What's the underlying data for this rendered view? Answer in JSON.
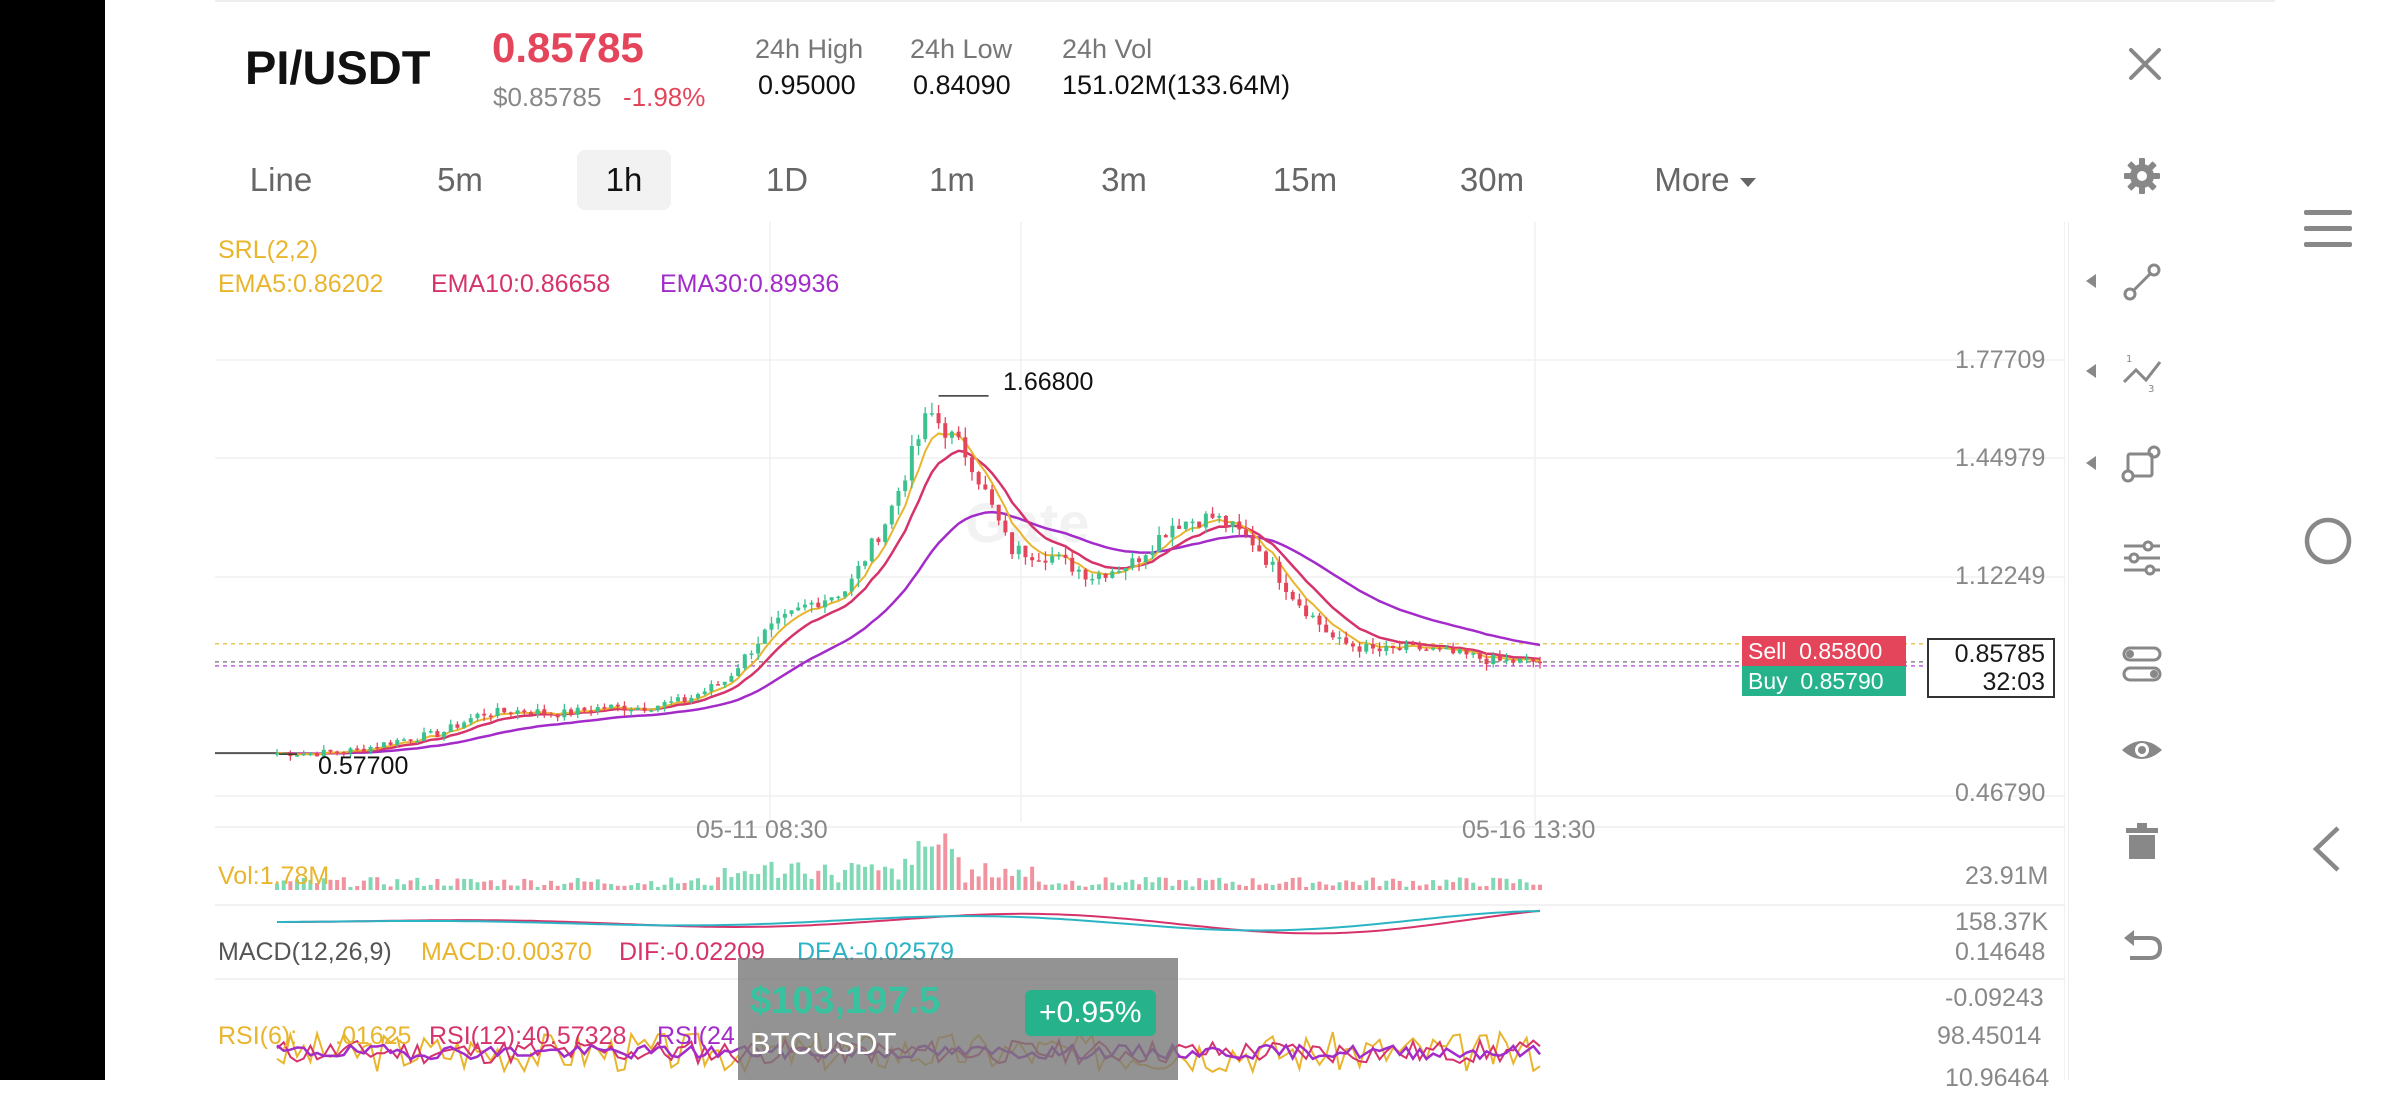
{
  "header": {
    "pair": "PI/USDT",
    "price": "0.85785",
    "usd_price": "$0.85785",
    "change": "-1.98%",
    "high_label": "24h High",
    "high_value": "0.95000",
    "low_label": "24h Low",
    "low_value": "0.84090",
    "vol_label": "24h Vol",
    "vol_value": "151.02M(133.64M)"
  },
  "tabs": [
    {
      "label": "Line"
    },
    {
      "label": "5m"
    },
    {
      "label": "1h"
    },
    {
      "label": "1D"
    },
    {
      "label": "1m"
    },
    {
      "label": "3m"
    },
    {
      "label": "15m"
    },
    {
      "label": "30m"
    },
    {
      "label": "More"
    }
  ],
  "active_tab": "1h",
  "indicators": {
    "srl": "SRL(2,2)",
    "ema5": "EMA5:0.86202",
    "ema10": "EMA10:0.86658",
    "ema30": "EMA30:0.89936",
    "vol": "Vol:1.78M",
    "macd_name": "MACD(12,26,9)",
    "macd": "MACD:0.00370",
    "dif": "DIF:-0.02209",
    "dea": "DEA:-0.02579",
    "rsi6": "RSI(6):",
    "rsi6_val": ".01625",
    "rsi12": "RSI(12):40.57328",
    "rsi24": "RSI(24"
  },
  "chart": {
    "y_labels": [
      "1.77709",
      "1.44979",
      "1.12249",
      "0.46790"
    ],
    "x_labels": [
      "05-11 08:30",
      "05-16 13:30"
    ],
    "high_marker": "1.66800",
    "low_marker": "0.57700",
    "vol_labels": [
      "23.91M",
      "158.37K"
    ],
    "macd_labels": [
      "0.14648",
      "-0.09243"
    ],
    "rsi_labels": [
      "98.45014",
      "10.96464"
    ],
    "sell_label": "Sell",
    "sell_price": "0.85800",
    "buy_label": "Buy",
    "buy_price": "0.85790",
    "current_price": "0.85785",
    "countdown": "32:03",
    "watermark": "Gate"
  },
  "chart_data": {
    "type": "candlestick",
    "interval": "1h",
    "ylim": [
      0.4679,
      1.77709
    ],
    "x_ticks": [
      "05-11 08:30",
      "05-16 13:30"
    ],
    "marked_high": 1.668,
    "marked_low": 0.577,
    "last_price": 0.85785,
    "ema_current": {
      "EMA5": 0.86202,
      "EMA10": 0.86658,
      "EMA30": 0.89936
    },
    "series_overview": {
      "name": "PI/USDT close (approx.)",
      "values": [
        0.58,
        0.58,
        0.59,
        0.62,
        0.64,
        0.7,
        0.71,
        0.7,
        0.72,
        0.72,
        0.74,
        0.8,
        0.95,
        1.03,
        1.08,
        1.3,
        1.62,
        1.48,
        1.2,
        1.18,
        1.12,
        1.16,
        1.28,
        1.3,
        1.22,
        1.05,
        0.92,
        0.89,
        0.9,
        0.88,
        0.86,
        0.858
      ]
    },
    "colors": {
      "up": "#3cc28f",
      "down": "#e4455b",
      "ema5": "#e8b52d",
      "ema10": "#d6336c",
      "ema30": "#a32bc9"
    }
  },
  "btc_widget": {
    "price": "$103,197.5",
    "change": "+0.95%",
    "symbol": "BTCUSDT"
  }
}
